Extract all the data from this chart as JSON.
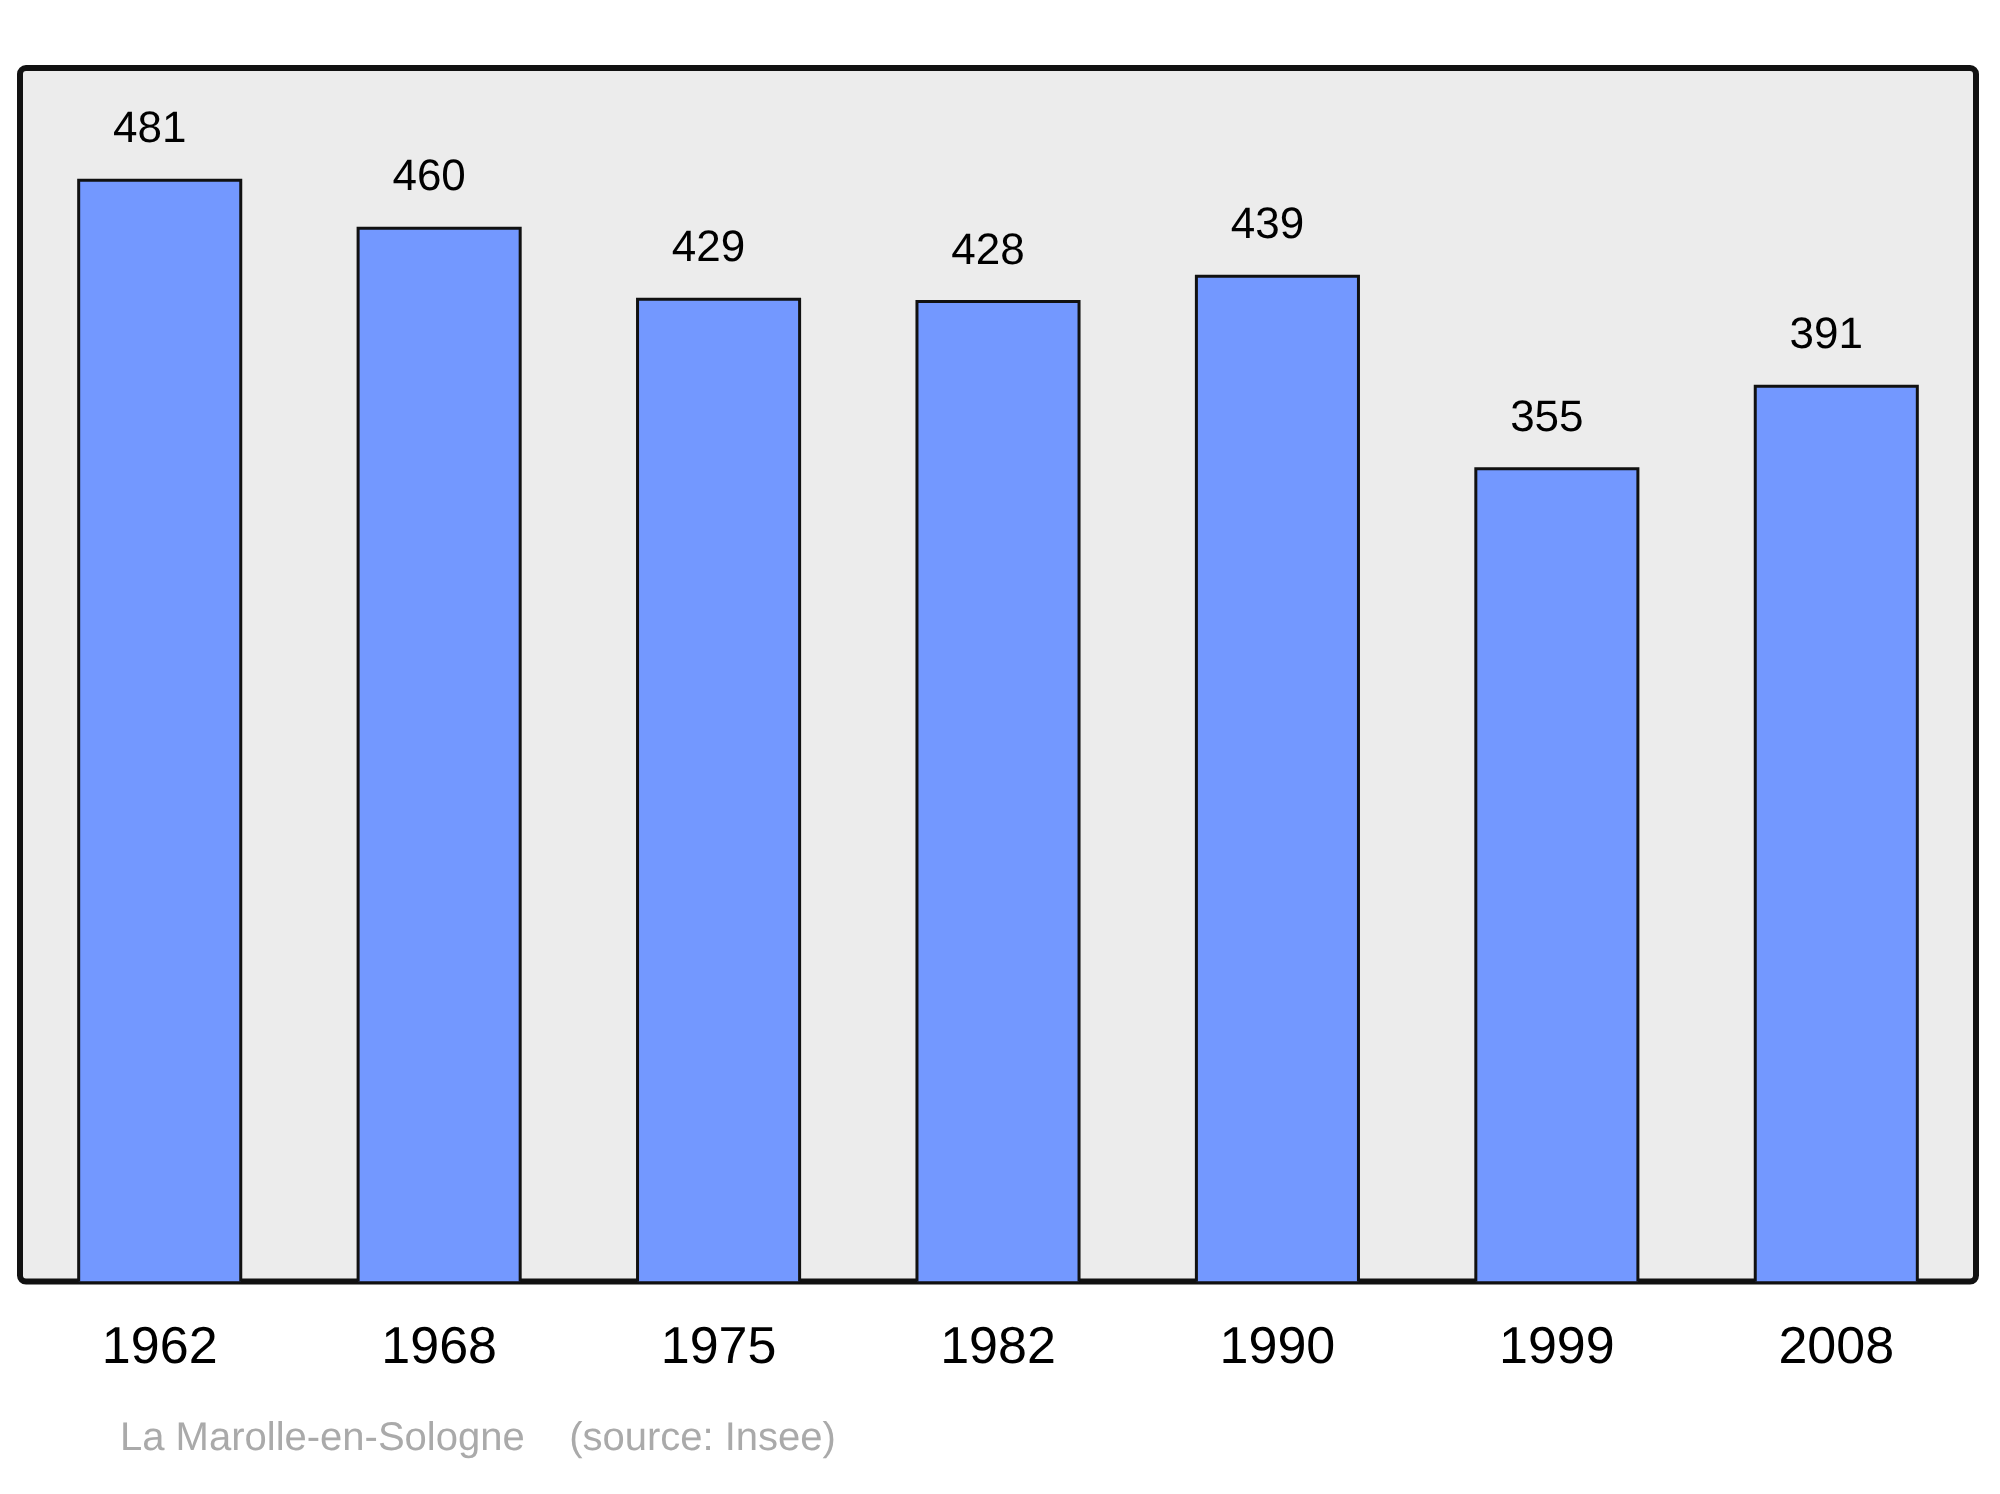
{
  "chart_data": {
    "type": "bar",
    "categories": [
      "1962",
      "1968",
      "1975",
      "1982",
      "1990",
      "1999",
      "2008"
    ],
    "values": [
      481,
      460,
      429,
      428,
      439,
      355,
      391
    ],
    "color": "#7398ff",
    "data_labels": true,
    "ylim": [
      0,
      530
    ],
    "tick_labels": "x",
    "annotations": [
      "La Marolle-en-Sologne    (source: Insee)"
    ]
  }
}
